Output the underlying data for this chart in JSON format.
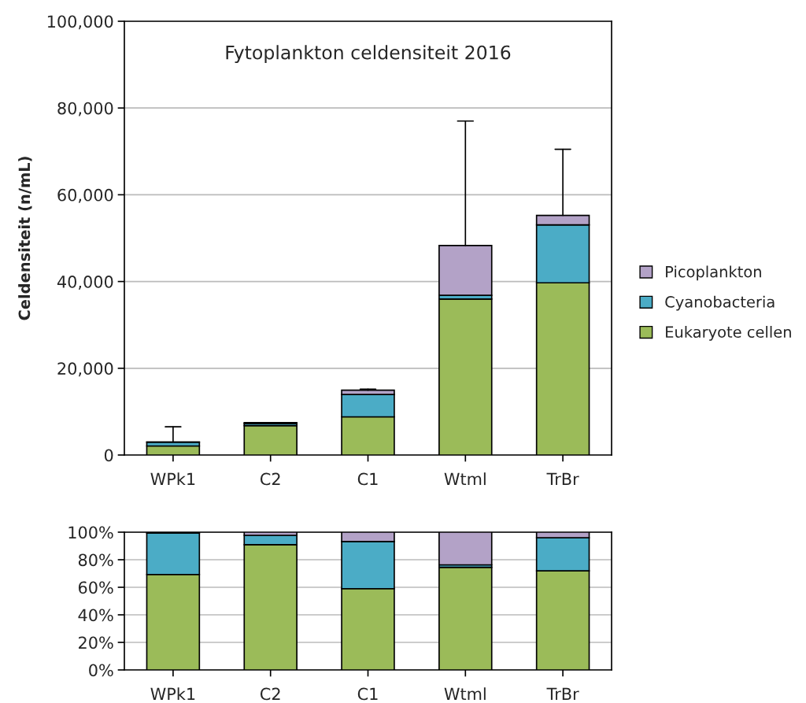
{
  "chart_data": [
    {
      "type": "bar",
      "title": "Fytoplankton celdensiteit 2016",
      "ylabel": "Celdensiteit (n/mL)",
      "categories": [
        "WPk1",
        "C2",
        "C1",
        "Wtml",
        "TrBr"
      ],
      "stacked": true,
      "series": [
        {
          "name": "Eukaryote cellen",
          "color": "#9bbb59",
          "values": [
            2080,
            6770,
            8800,
            35950,
            39700
          ]
        },
        {
          "name": "Cyanobacteria",
          "color": "#4bacc6",
          "values": [
            900,
            510,
            5150,
            870,
            13350
          ]
        },
        {
          "name": "Picoplankton",
          "color": "#b3a2c7",
          "values": [
            20,
            170,
            1000,
            11480,
            2200
          ],
          "errors": [
            [
              3000,
              6500
            ],
            null,
            [
              14950,
              15200
            ],
            [
              48300,
              77000
            ],
            [
              55250,
              70500
            ]
          ]
        }
      ],
      "ylim": [
        0,
        100000
      ],
      "yticks": [
        {
          "value": 0,
          "label": "0"
        },
        {
          "value": 20000,
          "label": "20,000"
        },
        {
          "value": 40000,
          "label": "40,000"
        },
        {
          "value": 60000,
          "label": "60,000"
        },
        {
          "value": 80000,
          "label": "80,000"
        },
        {
          "value": 100000,
          "label": "100,000"
        }
      ],
      "grid": "y",
      "legend": "right"
    },
    {
      "type": "bar",
      "categories": [
        "WPk1",
        "C2",
        "C1",
        "Wtml",
        "TrBr"
      ],
      "stacked": true,
      "series": [
        {
          "color": "#9bbb59",
          "values": [
            69.3,
            90.9,
            59.0,
            74.5,
            71.9
          ]
        },
        {
          "color": "#4bacc6",
          "values": [
            30.0,
            6.8,
            34.2,
            1.8,
            24.1
          ]
        },
        {
          "color": "#b3a2c7",
          "values": [
            0.7,
            2.3,
            6.8,
            23.7,
            4.0
          ]
        }
      ],
      "ylim": [
        0,
        100
      ],
      "yticks": [
        {
          "value": 0,
          "label": "0%"
        },
        {
          "value": 20,
          "label": "20%"
        },
        {
          "value": 40,
          "label": "40%"
        },
        {
          "value": 60,
          "label": "60%"
        },
        {
          "value": 80,
          "label": "80%"
        },
        {
          "value": 100,
          "label": "100%"
        }
      ],
      "grid": "y"
    }
  ]
}
